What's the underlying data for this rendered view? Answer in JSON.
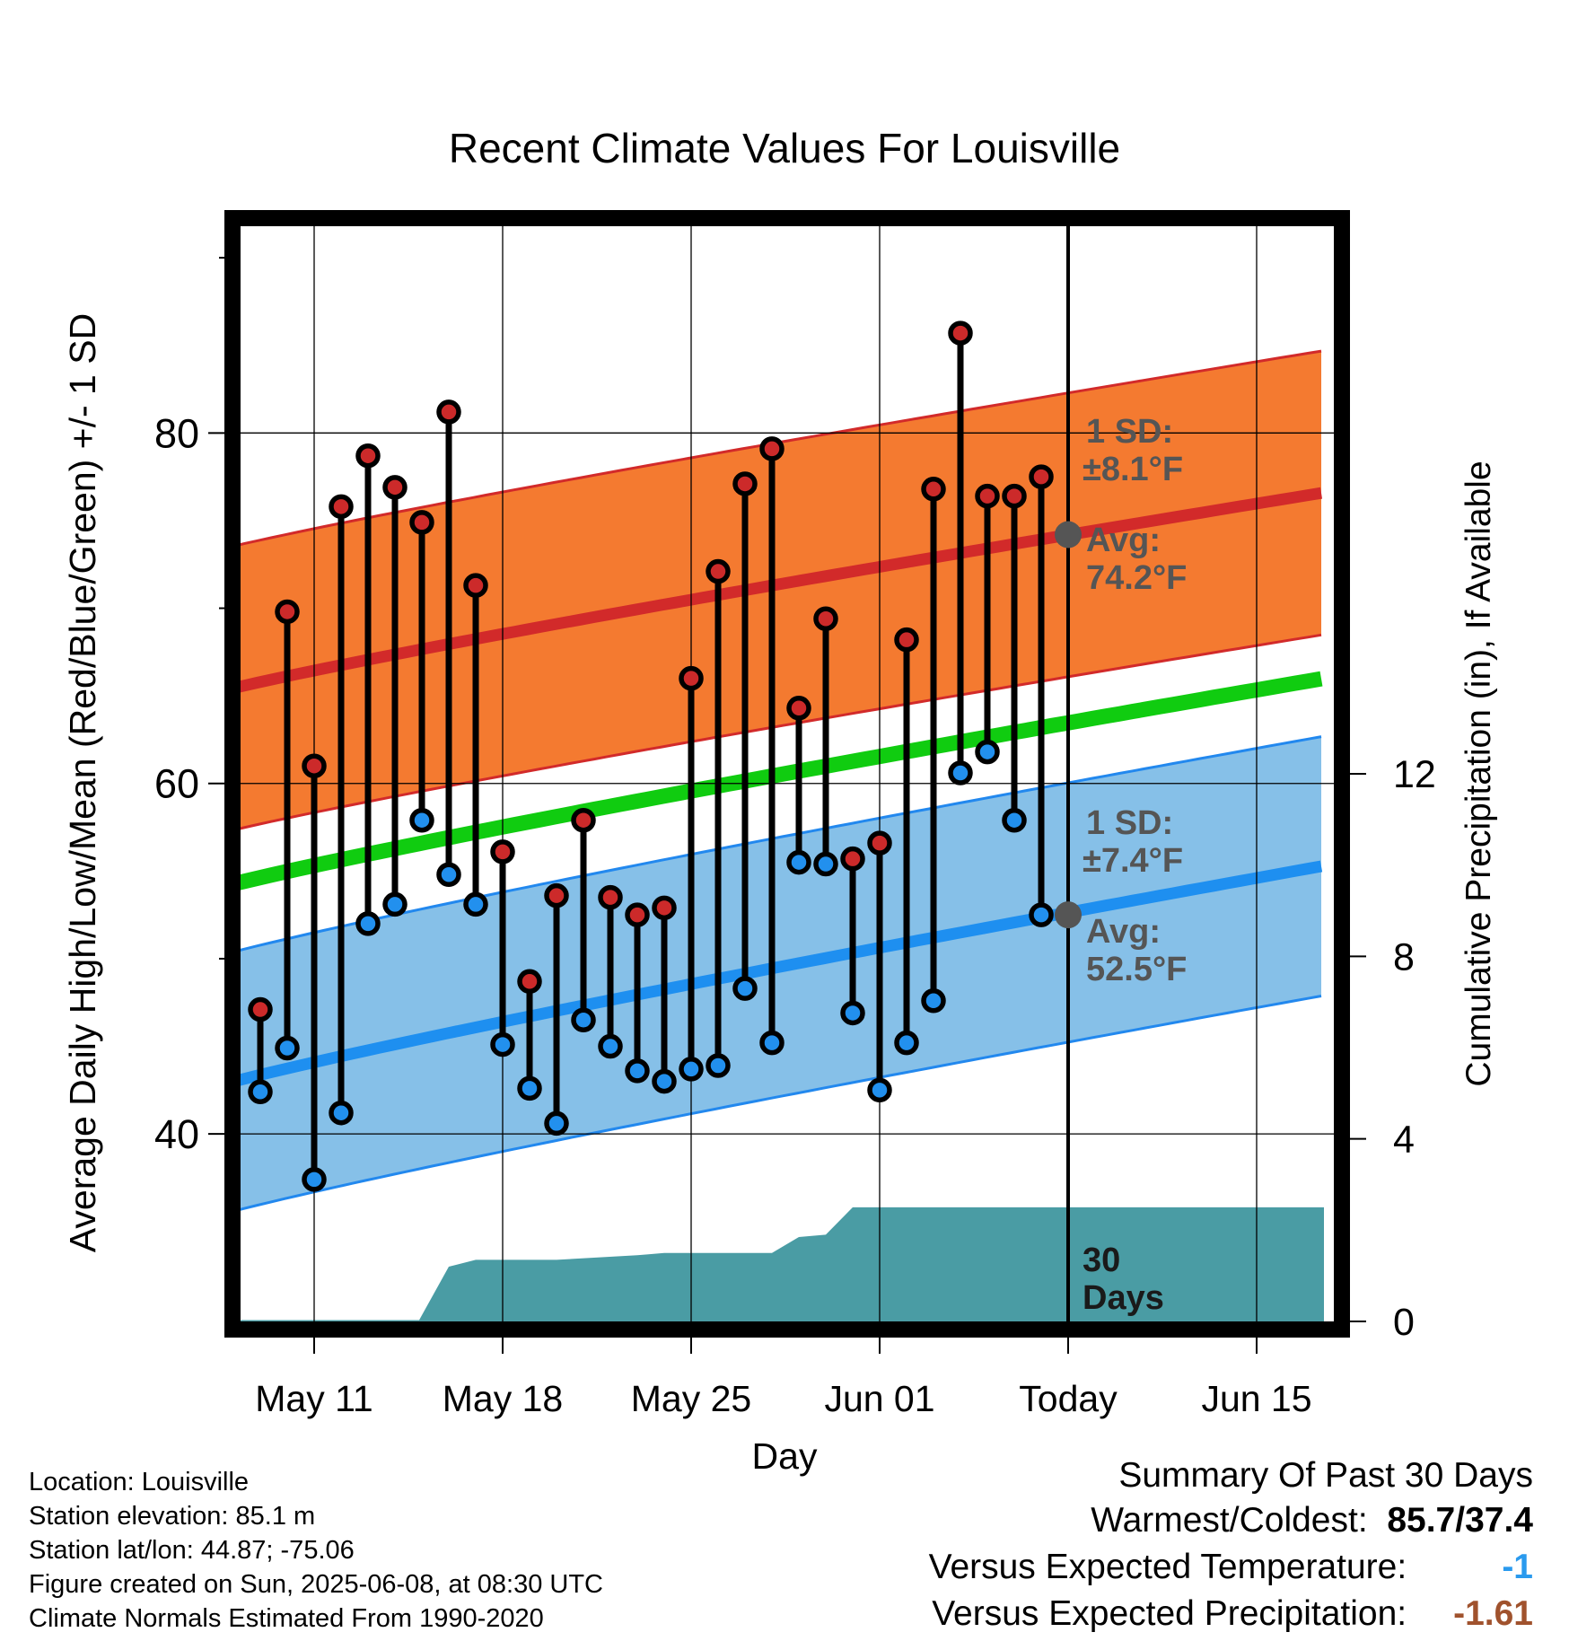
{
  "chart_data": {
    "type": "line",
    "title": "Recent Climate Values For Louisville",
    "xlabel": "Day",
    "ylabel": "Average Daily High/Low/Mean (Red/Blue/Green) +/- 1 SD",
    "y2label": "Cumulative Precipitation (in), If Available",
    "x_tick_labels": [
      "May 11",
      "May 18",
      "May 25",
      "Jun 01",
      "Today",
      "Jun 15"
    ],
    "y_ticks": [
      "40",
      "60",
      "80"
    ],
    "y2_ticks": [
      "0",
      "4",
      "8",
      "12"
    ],
    "ylim": [
      29.3,
      91.8
    ],
    "y2lim": [
      0,
      24
    ],
    "grid": true,
    "today_label": "Today",
    "window_label_1": "30",
    "window_label_2": "Days",
    "high_band": {
      "sd_label_1": "1 SD:",
      "sd_label_2": "±8.1°F",
      "avg_label_1": "Avg:",
      "avg_label_2": "74.2°F",
      "avg_today": 74.2,
      "sd": 8.1,
      "avg_start": 65.0,
      "avg_end": 76.6
    },
    "low_band": {
      "sd_label_1": "1 SD:",
      "sd_label_2": "±7.4°F",
      "avg_label_1": "Avg:",
      "avg_label_2": "52.5°F",
      "avg_today": 52.5,
      "sd": 7.4,
      "avg_start": 42.5,
      "avg_end": 55.3
    },
    "mean_line": {
      "start": 53.8,
      "end": 66.0
    },
    "daily_day_offsets": [
      -30,
      -29,
      -28,
      -27,
      -26,
      -25,
      -24,
      -23,
      -22,
      -21,
      -20,
      -19,
      -18,
      -17,
      -16,
      -15,
      -14,
      -13,
      -12,
      -11,
      -10,
      -9,
      -8,
      -7,
      -6,
      -5,
      -4,
      -3,
      -2,
      -1
    ],
    "series": [
      {
        "name": "High",
        "values": [
          47.1,
          69.8,
          61.0,
          75.8,
          78.7,
          76.9,
          74.9,
          81.2,
          71.3,
          56.1,
          48.7,
          53.6,
          57.9,
          53.5,
          52.5,
          52.9,
          66.0,
          72.1,
          77.1,
          79.1,
          64.3,
          69.4,
          55.7,
          56.6,
          68.2,
          76.8,
          85.7,
          76.4,
          76.4,
          77.5
        ]
      },
      {
        "name": "Low",
        "values": [
          42.4,
          44.9,
          37.4,
          41.2,
          52.0,
          53.1,
          57.9,
          54.8,
          53.1,
          45.1,
          42.6,
          40.6,
          46.5,
          45.0,
          43.6,
          43.0,
          43.7,
          43.9,
          48.3,
          45.2,
          55.5,
          55.4,
          46.9,
          42.5,
          45.2,
          47.6,
          60.6,
          61.8,
          57.9,
          52.5
        ]
      }
    ],
    "precip_cumulative": [
      {
        "day": -32.0,
        "value": 0.0
      },
      {
        "day": -30.8,
        "value": 0.0
      },
      {
        "day": -30.7,
        "value": 0.03
      },
      {
        "day": -25.6,
        "value": 0.03
      },
      {
        "day": -24.1,
        "value": 0.03
      },
      {
        "day": -23.0,
        "value": 1.2
      },
      {
        "day": -22.0,
        "value": 1.35
      },
      {
        "day": -19.0,
        "value": 1.35
      },
      {
        "day": -16.0,
        "value": 1.45
      },
      {
        "day": -15.0,
        "value": 1.5
      },
      {
        "day": -11.0,
        "value": 1.5
      },
      {
        "day": -10.0,
        "value": 1.85
      },
      {
        "day": -9.0,
        "value": 1.9
      },
      {
        "day": -8.0,
        "value": 2.5
      },
      {
        "day": 0.0,
        "value": 2.5
      },
      {
        "day": 9.5,
        "value": 2.5
      }
    ],
    "colors": {
      "high_band": "#F47A30",
      "high_band_edge": "#D22A2A",
      "high_avg": "#D22A2A",
      "low_band": "#86C0E8",
      "low_band_edge": "#2288EE",
      "low_avg": "#1E8FF0",
      "mean": "#10CC10",
      "high_marker": "#CC2A2A",
      "low_marker": "#2290EE",
      "precip": "#4A9CA4",
      "label_gray": "#555555"
    }
  },
  "footer": {
    "location": "Location: Louisville",
    "elevation": "Station elevation: 85.1 m",
    "latlon": "Station lat/lon: 44.87; -75.06",
    "created": "Figure created on Sun, 2025-06-08, at 08:30 UTC",
    "normals": "Climate Normals Estimated From 1990-2020"
  },
  "summary": {
    "title": "Summary Of Past 30 Days",
    "warmest_label": "Warmest/Coldest:",
    "warmest_value": "85.7/37.4",
    "temp_label": "Versus Expected Temperature:",
    "temp_value": "-1",
    "temp_color": "#2A9AEE",
    "precip_label": "Versus Expected Precipitation:",
    "precip_value": "-1.61",
    "precip_color": "#A0522D"
  }
}
